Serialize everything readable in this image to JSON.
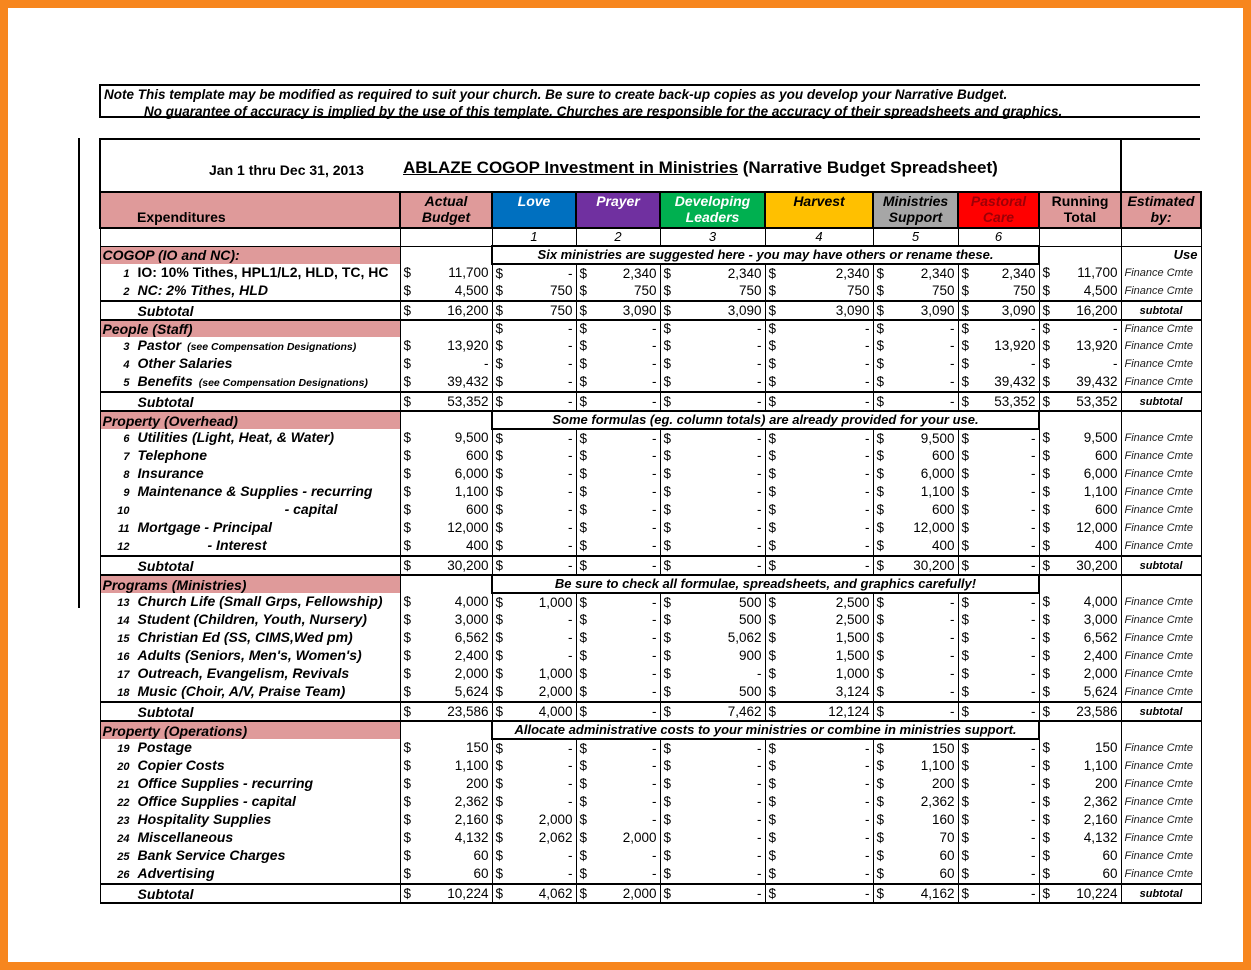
{
  "note": {
    "line1": "Note  This template may be modified as required to suit your church.  Be sure to create back-up copies as you develop your Narrative Budget.",
    "line2": "No guarantee of accuracy is implied by the use of this template.  Churches are responsible for the accuracy of their spreadsheets and graphics."
  },
  "header": {
    "date_range": "Jan 1 thru Dec 31, 2013",
    "title_underlined": "ABLAZE COGOP  Investment in Ministries",
    "title_rest": " (Narrative Budget Spreadsheet)"
  },
  "columns": {
    "expenditures": "Expenditures",
    "actual": [
      "Actual",
      "Budget"
    ],
    "ministries": [
      {
        "name": [
          "Love"
        ],
        "number": "1",
        "bg": "#0070c0",
        "fg": "#ffffff"
      },
      {
        "name": [
          "Prayer"
        ],
        "number": "2",
        "bg": "#7030a0",
        "fg": "#ffffff"
      },
      {
        "name": [
          "Developing",
          "Leaders"
        ],
        "number": "3",
        "bg": "#00b050",
        "fg": "#ffffff"
      },
      {
        "name": [
          "Harvest"
        ],
        "number": "4",
        "bg": "#ffc000",
        "fg": "#000000"
      },
      {
        "name": [
          "Ministries",
          "Support"
        ],
        "number": "5",
        "bg": "#a6a6a6",
        "fg": "#000000"
      },
      {
        "name": [
          "Pastoral",
          "Care"
        ],
        "number": "6",
        "bg": "#ff0000",
        "fg": "#9c0006"
      }
    ],
    "running": [
      "Running",
      "Total"
    ],
    "estimated": [
      "Estimated",
      "by:"
    ]
  },
  "sections": [
    {
      "label": "COGOP (IO and NC):",
      "note": "Six ministries are suggested here - you may have others or rename these.",
      "estimated": "Use",
      "rows": [
        {
          "num": "1",
          "label": "IO: 10% Tithes, HPL1/L2, HLD, TC, HC",
          "upright": true,
          "values": [
            "11,700",
            "-",
            "2,340",
            "2,340",
            "2,340",
            "2,340",
            "2,340",
            "11,700"
          ],
          "estimated": "Finance Cmte"
        },
        {
          "num": "2",
          "label": "NC: 2% Tithes, HLD",
          "values": [
            "4,500",
            "750",
            "750",
            "750",
            "750",
            "750",
            "750",
            "4,500"
          ],
          "estimated": "Finance Cmte"
        }
      ],
      "subtotal": {
        "label": "Subtotal",
        "values": [
          "16,200",
          "750",
          "3,090",
          "3,090",
          "3,090",
          "3,090",
          "3,090",
          "16,200"
        ],
        "estimated": "subtotal"
      }
    },
    {
      "label": "People (Staff)",
      "values": [
        "",
        "-",
        "-",
        "-",
        "-",
        "-",
        "-",
        "-"
      ],
      "estimated": "Finance Cmte",
      "rows": [
        {
          "num": "3",
          "label": "Pastor",
          "sublabel": "(see Compensation Designations)",
          "values": [
            "13,920",
            "-",
            "-",
            "-",
            "-",
            "-",
            "13,920",
            "13,920"
          ],
          "estimated": "Finance Cmte"
        },
        {
          "num": "4",
          "label": "Other Salaries",
          "values": [
            "-",
            "-",
            "-",
            "-",
            "-",
            "-",
            "-",
            "-"
          ],
          "estimated": "Finance Cmte"
        },
        {
          "num": "5",
          "label": "Benefits",
          "sublabel": "(see Compensation Designations)",
          "values": [
            "39,432",
            "-",
            "-",
            "-",
            "-",
            "-",
            "39,432",
            "39,432"
          ],
          "estimated": "Finance Cmte"
        }
      ],
      "subtotal": {
        "label": "Subtotal",
        "values": [
          "53,352",
          "-",
          "-",
          "-",
          "-",
          "-",
          "53,352",
          "53,352"
        ],
        "estimated": "subtotal"
      }
    },
    {
      "label": "Property (Overhead)",
      "note": "Some formulas (eg. column totals) are already provided for your use.",
      "rows": [
        {
          "num": "6",
          "label": "Utilities (Light, Heat, & Water)",
          "values": [
            "9,500",
            "-",
            "-",
            "-",
            "-",
            "9,500",
            "-",
            "9,500"
          ],
          "estimated": "Finance Cmte"
        },
        {
          "num": "7",
          "label": "Telephone",
          "values": [
            "600",
            "-",
            "-",
            "-",
            "-",
            "600",
            "-",
            "600"
          ],
          "estimated": "Finance Cmte"
        },
        {
          "num": "8",
          "label": "Insurance",
          "values": [
            "6,000",
            "-",
            "-",
            "-",
            "-",
            "6,000",
            "-",
            "6,000"
          ],
          "estimated": "Finance Cmte"
        },
        {
          "num": "9",
          "label": "Maintenance & Supplies - recurring",
          "values": [
            "1,100",
            "-",
            "-",
            "-",
            "-",
            "1,100",
            "-",
            "1,100"
          ],
          "estimated": "Finance Cmte"
        },
        {
          "num": "10",
          "label": "- capital",
          "right": true,
          "values": [
            "600",
            "-",
            "-",
            "-",
            "-",
            "600",
            "-",
            "600"
          ],
          "estimated": "Finance Cmte"
        },
        {
          "num": "11",
          "label": "Mortgage  - Principal",
          "values": [
            "12,000",
            "-",
            "-",
            "-",
            "-",
            "12,000",
            "-",
            "12,000"
          ],
          "estimated": "Finance Cmte"
        },
        {
          "num": "12",
          "label": "- Interest",
          "indent": true,
          "values": [
            "400",
            "-",
            "-",
            "-",
            "-",
            "400",
            "-",
            "400"
          ],
          "estimated": "Finance Cmte"
        }
      ],
      "subtotal": {
        "label": "Subtotal",
        "values": [
          "30,200",
          "-",
          "-",
          "-",
          "-",
          "30,200",
          "-",
          "30,200"
        ],
        "estimated": "subtotal"
      }
    },
    {
      "label": "Programs (Ministries)",
      "note": "Be sure to check all formulae, spreadsheets, and graphics carefully!",
      "rows": [
        {
          "num": "13",
          "label": "Church Life (Small Grps, Fellowship)",
          "values": [
            "4,000",
            "1,000",
            "-",
            "500",
            "2,500",
            "-",
            "-",
            "4,000"
          ],
          "estimated": "Finance Cmte"
        },
        {
          "num": "14",
          "label": "Student (Children, Youth, Nursery)",
          "values": [
            "3,000",
            "-",
            "-",
            "500",
            "2,500",
            "-",
            "-",
            "3,000"
          ],
          "estimated": "Finance Cmte"
        },
        {
          "num": "15",
          "label": "Christian Ed (SS, CIMS,Wed pm)",
          "values": [
            "6,562",
            "-",
            "-",
            "5,062",
            "1,500",
            "-",
            "-",
            "6,562"
          ],
          "estimated": "Finance Cmte"
        },
        {
          "num": "16",
          "label": "Adults (Seniors, Men's, Women's)",
          "values": [
            "2,400",
            "-",
            "-",
            "900",
            "1,500",
            "-",
            "-",
            "2,400"
          ],
          "estimated": "Finance Cmte"
        },
        {
          "num": "17",
          "label": "Outreach, Evangelism, Revivals",
          "values": [
            "2,000",
            "1,000",
            "-",
            "-",
            "1,000",
            "-",
            "-",
            "2,000"
          ],
          "estimated": "Finance Cmte"
        },
        {
          "num": "18",
          "label": "Music (Choir, A/V, Praise Team)",
          "values": [
            "5,624",
            "2,000",
            "-",
            "500",
            "3,124",
            "-",
            "-",
            "5,624"
          ],
          "estimated": "Finance Cmte"
        }
      ],
      "subtotal": {
        "label": "Subtotal",
        "values": [
          "23,586",
          "4,000",
          "-",
          "7,462",
          "12,124",
          "-",
          "-",
          "23,586"
        ],
        "estimated": "subtotal"
      }
    },
    {
      "label": "Property (Operations)",
      "note": "Allocate administrative costs to your ministries or combine in ministries support.",
      "rows": [
        {
          "num": "19",
          "label": "Postage",
          "values": [
            "150",
            "-",
            "-",
            "-",
            "-",
            "150",
            "-",
            "150"
          ],
          "estimated": "Finance Cmte"
        },
        {
          "num": "20",
          "label": "Copier Costs",
          "values": [
            "1,100",
            "-",
            "-",
            "-",
            "-",
            "1,100",
            "-",
            "1,100"
          ],
          "estimated": "Finance Cmte"
        },
        {
          "num": "21",
          "label": "Office Supplies - recurring",
          "values": [
            "200",
            "-",
            "-",
            "-",
            "-",
            "200",
            "-",
            "200"
          ],
          "estimated": "Finance Cmte"
        },
        {
          "num": "22",
          "label": "Office Supplies - capital",
          "values": [
            "2,362",
            "-",
            "-",
            "-",
            "-",
            "2,362",
            "-",
            "2,362"
          ],
          "estimated": "Finance Cmte"
        },
        {
          "num": "23",
          "label": "Hospitality Supplies",
          "values": [
            "2,160",
            "2,000",
            "-",
            "-",
            "-",
            "160",
            "-",
            "2,160"
          ],
          "estimated": "Finance Cmte"
        },
        {
          "num": "24",
          "label": "Miscellaneous",
          "values": [
            "4,132",
            "2,062",
            "2,000",
            "-",
            "-",
            "70",
            "-",
            "4,132"
          ],
          "estimated": "Finance Cmte"
        },
        {
          "num": "25",
          "label": "Bank Service Charges",
          "values": [
            "60",
            "-",
            "-",
            "-",
            "-",
            "60",
            "-",
            "60"
          ],
          "estimated": "Finance Cmte"
        },
        {
          "num": "26",
          "label": "Advertising",
          "values": [
            "60",
            "-",
            "-",
            "-",
            "-",
            "60",
            "-",
            "60"
          ],
          "estimated": "Finance Cmte"
        }
      ],
      "subtotal": {
        "label": "Subtotal",
        "values": [
          "10,224",
          "4,062",
          "2,000",
          "-",
          "-",
          "4,162",
          "-",
          "10,224"
        ],
        "estimated": "subtotal"
      }
    }
  ],
  "currency_symbol": "$"
}
